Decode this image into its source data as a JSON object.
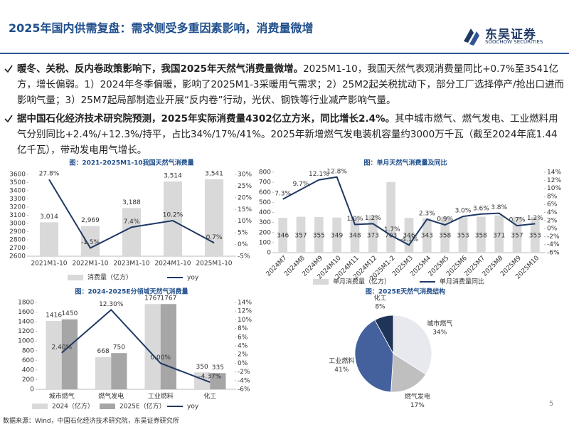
{
  "header": {
    "title": "2025年国内供需复盘：需求侧受多重因素影响，消费量微增",
    "logo": "东吴证券",
    "logo_en": "SOOCHOW SECURITIES"
  },
  "bullets": [
    {
      "bold": "暖冬、关税、反内卷政策影响下，我国2025年天然气消费量微增。",
      "text": "2025M1-10，我国天然气表观消费量同比+0.7%至3541亿方，增长偏弱。1）2024年冬季偏暖，影响了2025M1-3采暖用气需求；2）25M2起关税扰动下，部分工厂选择停产/抢出口进而影响气量；3）25M7起局部制造业开展“反内卷”行动，光伏、钢铁等行业减产影响气量。"
    },
    {
      "bold": "据中国石化经济技术研究院预测，2025年实际消费量4302亿立方米，同比增长2.4%。",
      "text": "其中城市燃气、燃气发电、工业燃料用气分别同比+2.4%/+12.3%/持平，占比34%/17%/41%。2025年新增燃气发电装机容量约3000万千瓦（截至2024年底1.44亿千瓦），带动发电用气增长。"
    }
  ],
  "chart_data": [
    {
      "type": "combo",
      "title": "图：2021-2025M1-10我国天然气消费量",
      "categories": [
        "2021M1-10",
        "2022M1-10",
        "2023M1-10",
        "2024M1-10",
        "2025M1-10"
      ],
      "series": [
        {
          "name": "消费量（亿方）",
          "color": "#d9d9d9",
          "values": [
            3014,
            2969,
            3188,
            3514,
            3541
          ],
          "value_labels": [
            "3,014",
            "2,969",
            "3,188",
            "3,514",
            "3,541"
          ]
        },
        {
          "name": "yoy",
          "color": "#1f3864",
          "axis": "y2",
          "values": [
            27.8,
            -1.5,
            7.4,
            10.2,
            0.7
          ],
          "value_labels": [
            "27.8%",
            "-1.5%",
            "7.4%",
            "10.2%",
            "0.7%"
          ]
        }
      ],
      "ylim": [
        2600,
        3600
      ],
      "yticks": [
        2600,
        2700,
        2800,
        2900,
        3000,
        3100,
        3200,
        3300,
        3400,
        3500,
        3600
      ],
      "y2lim": [
        -5,
        30
      ],
      "y2ticks": [
        {
          "value": -5,
          "label": "-5%"
        },
        {
          "value": 0,
          "label": "0%"
        },
        {
          "value": 5,
          "label": "5%"
        },
        {
          "value": 10,
          "label": "10%"
        },
        {
          "value": 15,
          "label": "15%"
        },
        {
          "value": 20,
          "label": "20%"
        },
        {
          "value": 25,
          "label": "25%"
        },
        {
          "value": 30,
          "label": "30%"
        }
      ]
    },
    {
      "type": "combo",
      "title": "图：单月天然气消费量及同比",
      "categories": [
        "2024M7",
        "2024M8",
        "2024M9",
        "2024M10",
        "2024M11",
        "2024M12",
        "2025M1-2",
        "2025M3",
        "2025M4",
        "2025M5",
        "2025M6",
        "2025M7",
        "2025M8",
        "2025M9",
        "2025M10"
      ],
      "series": [
        {
          "name": "单月消费量（亿方）",
          "color": "#d9d9d9",
          "values": [
            346,
            357,
            355,
            349,
            348,
            373,
            703,
            346,
            343,
            358,
            353,
            358,
            371,
            357,
            353
          ]
        },
        {
          "name": "单月消费量同比",
          "color": "#1f3864",
          "axis": "y2",
          "values": [
            7.3,
            9.7,
            12.1,
            12.8,
            1.0,
            1.2,
            -1.7,
            -4.1,
            2.3,
            0.9,
            3.0,
            3.6,
            3.8,
            0.7,
            1.2
          ],
          "value_labels": [
            "7.3%",
            "9.7%",
            "12.1%",
            "12.8%",
            "1.0%",
            "1.2%",
            "-1.7%",
            "-4.1%",
            "2.3%",
            "0.9%",
            "3.0%",
            "3.6%",
            "3.8%",
            "0.7%",
            "1.2%"
          ]
        }
      ],
      "ylim": [
        0,
        800
      ],
      "yticks": [
        0,
        100,
        200,
        300,
        400,
        500,
        600,
        700,
        800
      ],
      "y2lim": [
        -6,
        14
      ],
      "y2ticks": [
        {
          "value": -6,
          "label": "-6%"
        },
        {
          "value": -4,
          "label": "-4%"
        },
        {
          "value": -2,
          "label": "-2%"
        },
        {
          "value": 0,
          "label": "0%"
        },
        {
          "value": 2,
          "label": "2%"
        },
        {
          "value": 4,
          "label": "4%"
        },
        {
          "value": 6,
          "label": "6%"
        },
        {
          "value": 8,
          "label": "8%"
        },
        {
          "value": 10,
          "label": "10%"
        },
        {
          "value": 12,
          "label": "12%"
        },
        {
          "value": 14,
          "label": "14%"
        }
      ]
    },
    {
      "type": "combo",
      "title": "图：2024-2025E分领域天然气消费量",
      "categories": [
        "城市燃气",
        "燃气发电",
        "工业燃料",
        "化工"
      ],
      "series": [
        {
          "name": "2024（亿方）",
          "color": "#d9d9d9",
          "values": [
            1416,
            668,
            1767,
            350
          ]
        },
        {
          "name": "2025E（亿方）",
          "color": "#a6a6a6",
          "values": [
            1450,
            750,
            1767,
            335
          ]
        },
        {
          "name": "yoy",
          "color": "#1f3864",
          "axis": "y2",
          "values": [
            2.4,
            12.3,
            0.0,
            -4.37
          ],
          "value_labels": [
            "2.40%",
            "12.30%",
            "0.00%",
            "-4.37%"
          ]
        }
      ],
      "ylim": [
        0,
        1800
      ],
      "yticks": [
        0,
        200,
        400,
        600,
        800,
        1000,
        1200,
        1400,
        1600,
        1800
      ],
      "y2lim": [
        -6,
        14
      ],
      "y2ticks": [
        {
          "value": -6,
          "label": "-6%"
        },
        {
          "value": -4,
          "label": "-4%"
        },
        {
          "value": -2,
          "label": "-2%"
        },
        {
          "value": 0,
          "label": "0%"
        },
        {
          "value": 2,
          "label": "2%"
        },
        {
          "value": 4,
          "label": "4%"
        },
        {
          "value": 6,
          "label": "6%"
        },
        {
          "value": 8,
          "label": "8%"
        },
        {
          "value": 10,
          "label": "10%"
        },
        {
          "value": 12,
          "label": "12%"
        },
        {
          "value": 14,
          "label": "14%"
        }
      ]
    },
    {
      "type": "pie",
      "title": "图：2025E天然气消费结构",
      "categories": [
        "城市燃气",
        "燃气发电",
        "工业燃料",
        "化工"
      ],
      "values": [
        34,
        17,
        41,
        8
      ],
      "value_labels": [
        "34%",
        "17%",
        "41%",
        "8%"
      ],
      "colors": [
        "#e7e9ee",
        "#bfbfbf",
        "#44619e",
        "#1f3458"
      ]
    }
  ],
  "source": "数据来源：Wind，中国石化经济技术研究院，东吴证券研究所",
  "page": "5"
}
